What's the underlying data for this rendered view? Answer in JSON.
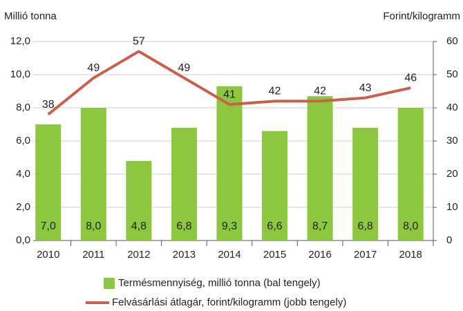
{
  "chart_data": {
    "type": "bar",
    "y_label": "Millió tonna",
    "y2_label": "Forint/kilogramm",
    "categories": [
      "2010",
      "2011",
      "2012",
      "2013",
      "2014",
      "2015",
      "2016",
      "2017",
      "2018"
    ],
    "series": [
      {
        "name": "Termésmennyiség, millió tonna (bal tengely)",
        "color": "#8dc63f",
        "values": [
          7.0,
          8.0,
          4.8,
          6.8,
          9.3,
          6.6,
          8.7,
          6.8,
          8.0
        ],
        "value_labels": [
          "7,0",
          "8,0",
          "4,8",
          "6,8",
          "9,3",
          "6,6",
          "8,7",
          "6,8",
          "8,0"
        ]
      },
      {
        "name": "Felvásárlási átlagár, forint/kilogramm (jobb tengely)",
        "color": "#c9604b",
        "type": "line",
        "axis": "y2",
        "values": [
          38,
          49,
          57,
          49,
          41,
          42,
          42,
          43,
          46
        ]
      }
    ],
    "ylim": [
      0,
      12
    ],
    "yticks": [
      {
        "value": 0,
        "label": "0,0"
      },
      {
        "value": 2,
        "label": "2,0"
      },
      {
        "value": 4,
        "label": "4,0"
      },
      {
        "value": 6,
        "label": "6,0"
      },
      {
        "value": 8,
        "label": "8,0"
      },
      {
        "value": 10,
        "label": "10,0"
      },
      {
        "value": 12,
        "label": "12,0"
      }
    ],
    "y2lim": [
      0,
      60
    ],
    "y2ticks": [
      0,
      10,
      20,
      30,
      40,
      50,
      60
    ],
    "grid": true
  }
}
